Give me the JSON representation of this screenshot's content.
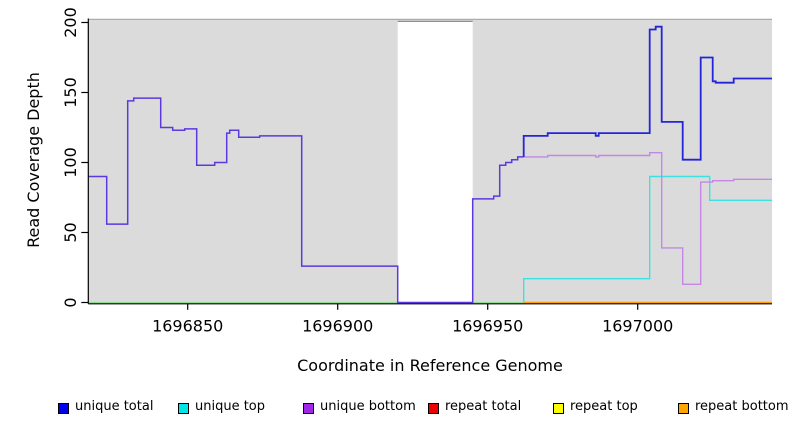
{
  "chart_data": {
    "type": "line",
    "line_style": "step-after",
    "title": "",
    "xlabel": "Coordinate in Reference Genome",
    "ylabel": "Read Coverage Depth",
    "xlim": [
      1696817,
      1697045
    ],
    "ylim": [
      0,
      200
    ],
    "x_tick_values": [
      1696850,
      1696900,
      1696950,
      1697000
    ],
    "x_tick_labels": [
      "1696850",
      "1696900",
      "1696950",
      "1697000"
    ],
    "y_tick_values": [
      0,
      50,
      100,
      150,
      200
    ],
    "y_tick_labels": [
      "0",
      "50",
      "100",
      "150",
      "200"
    ],
    "grid": false,
    "plot_background": "#DBDBDB",
    "no_data_region": {
      "x_start": 1696920,
      "x_end": 1696945
    },
    "legend": {
      "position": "bottom",
      "items": [
        {
          "label": "unique total",
          "color": "#0000EE"
        },
        {
          "label": "unique top",
          "color": "#00E5E5"
        },
        {
          "label": "unique bottom",
          "color": "#A226E8"
        },
        {
          "label": "repeat total",
          "color": "#EE0000"
        },
        {
          "label": "repeat top",
          "color": "#FFFF00"
        },
        {
          "label": "repeat bottom",
          "color": "#FFA500"
        }
      ]
    },
    "series": [
      {
        "name": "unique total",
        "steps": [
          [
            1696817,
            90
          ],
          [
            1696823,
            56
          ],
          [
            1696830,
            144
          ],
          [
            1696832,
            146
          ],
          [
            1696841,
            125
          ],
          [
            1696845,
            123
          ],
          [
            1696849,
            124
          ],
          [
            1696853,
            98
          ],
          [
            1696859,
            100
          ],
          [
            1696863,
            121
          ],
          [
            1696864,
            123
          ],
          [
            1696867,
            118
          ],
          [
            1696874,
            119
          ],
          [
            1696888,
            26
          ],
          [
            1696920,
            0
          ],
          [
            1696945,
            74
          ],
          [
            1696952,
            76
          ],
          [
            1696954,
            98
          ],
          [
            1696956,
            100
          ],
          [
            1696958,
            102
          ],
          [
            1696960,
            104
          ],
          [
            1696962,
            119
          ],
          [
            1696970,
            121
          ],
          [
            1696986,
            119
          ],
          [
            1696987,
            121
          ],
          [
            1697004,
            195
          ],
          [
            1697006,
            197
          ],
          [
            1697008,
            129
          ],
          [
            1697015,
            102
          ],
          [
            1697021,
            175
          ],
          [
            1697025,
            158
          ],
          [
            1697026,
            157
          ],
          [
            1697032,
            160
          ],
          [
            1697045,
            160
          ]
        ]
      },
      {
        "name": "unique top",
        "steps": [
          [
            1696817,
            0
          ],
          [
            1696962,
            17
          ],
          [
            1697004,
            90
          ],
          [
            1697024,
            73
          ],
          [
            1697045,
            73
          ]
        ]
      },
      {
        "name": "unique bottom",
        "steps": [
          [
            1696817,
            90
          ],
          [
            1696823,
            56
          ],
          [
            1696830,
            144
          ],
          [
            1696832,
            146
          ],
          [
            1696841,
            125
          ],
          [
            1696845,
            123
          ],
          [
            1696849,
            124
          ],
          [
            1696853,
            98
          ],
          [
            1696859,
            100
          ],
          [
            1696863,
            121
          ],
          [
            1696864,
            123
          ],
          [
            1696867,
            118
          ],
          [
            1696874,
            119
          ],
          [
            1696888,
            26
          ],
          [
            1696920,
            0
          ],
          [
            1696945,
            74
          ],
          [
            1696952,
            76
          ],
          [
            1696954,
            98
          ],
          [
            1696956,
            100
          ],
          [
            1696958,
            102
          ],
          [
            1696960,
            104
          ],
          [
            1696962,
            104
          ],
          [
            1696970,
            105
          ],
          [
            1696986,
            104
          ],
          [
            1696987,
            105
          ],
          [
            1697004,
            107
          ],
          [
            1697008,
            39
          ],
          [
            1697015,
            13
          ],
          [
            1697021,
            86
          ],
          [
            1697025,
            87
          ],
          [
            1697032,
            88
          ],
          [
            1697045,
            88
          ]
        ]
      },
      {
        "name": "repeat total",
        "steps": [
          [
            1696817,
            0
          ],
          [
            1697045,
            0
          ]
        ]
      },
      {
        "name": "repeat top",
        "steps": [
          [
            1696817,
            0
          ],
          [
            1697045,
            0
          ]
        ]
      },
      {
        "name": "repeat bottom",
        "steps": [
          [
            1696817,
            0
          ],
          [
            1697045,
            0
          ]
        ]
      }
    ],
    "rendered_lines": [
      {
        "name": "zero-baseline-left-overlap",
        "color": "#95DA95",
        "width": 1.3,
        "steps": [
          [
            1696817,
            0
          ],
          [
            1696962,
            0
          ]
        ]
      },
      {
        "name": "repeat-bottom-line",
        "color": "#FF9E0B",
        "width": 1.4,
        "steps": [
          [
            1696962,
            0
          ],
          [
            1697045,
            0
          ]
        ]
      },
      {
        "name": "unique-top-line",
        "color": "#3CE1E4",
        "width": 1.4,
        "steps": [
          [
            1696962,
            0
          ],
          [
            1696962,
            17
          ],
          [
            1697004,
            90
          ],
          [
            1697024,
            73
          ],
          [
            1697045,
            73
          ]
        ]
      },
      {
        "name": "unique-bottom-line",
        "color": "#C487E6",
        "width": 1.4,
        "steps": [
          [
            1696962,
            104
          ],
          [
            1696970,
            105
          ],
          [
            1696986,
            104
          ],
          [
            1696987,
            105
          ],
          [
            1697004,
            107
          ],
          [
            1697008,
            39
          ],
          [
            1697015,
            13
          ],
          [
            1697021,
            86
          ],
          [
            1697025,
            87
          ],
          [
            1697032,
            88
          ],
          [
            1697045,
            88
          ]
        ]
      },
      {
        "name": "unique-total-bottom-merged-line",
        "color": "#5C39DE",
        "width": 1.5,
        "steps": [
          [
            1696817,
            90
          ],
          [
            1696823,
            56
          ],
          [
            1696830,
            144
          ],
          [
            1696832,
            146
          ],
          [
            1696841,
            125
          ],
          [
            1696845,
            123
          ],
          [
            1696849,
            124
          ],
          [
            1696853,
            98
          ],
          [
            1696859,
            100
          ],
          [
            1696863,
            121
          ],
          [
            1696864,
            123
          ],
          [
            1696867,
            118
          ],
          [
            1696874,
            119
          ],
          [
            1696888,
            26
          ],
          [
            1696920,
            0
          ],
          [
            1696945,
            74
          ],
          [
            1696952,
            76
          ],
          [
            1696954,
            98
          ],
          [
            1696956,
            100
          ],
          [
            1696958,
            102
          ],
          [
            1696960,
            104
          ],
          [
            1696962,
            104
          ]
        ]
      },
      {
        "name": "unique-total-line",
        "color": "#2424DA",
        "width": 1.8,
        "steps": [
          [
            1696962,
            104
          ],
          [
            1696962,
            119
          ],
          [
            1696970,
            121
          ],
          [
            1696986,
            119
          ],
          [
            1696987,
            121
          ],
          [
            1697004,
            195
          ],
          [
            1697006,
            197
          ],
          [
            1697008,
            129
          ],
          [
            1697015,
            102
          ],
          [
            1697021,
            175
          ],
          [
            1697025,
            158
          ],
          [
            1697026,
            157
          ],
          [
            1697032,
            160
          ],
          [
            1697045,
            160
          ]
        ]
      }
    ]
  }
}
